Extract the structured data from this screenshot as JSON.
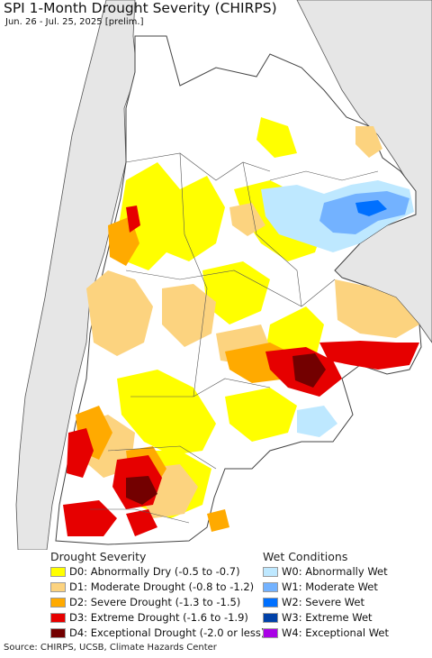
{
  "header": {
    "title": "SPI 1-Month Drought Severity (CHIRPS)",
    "subtitle": "Jun. 26 - Jul. 25, 2025 [prelim.]"
  },
  "legend": {
    "drought_heading": "Drought Severity",
    "wet_heading": "Wet Conditions",
    "drought_items": [
      {
        "label": "D0: Abnormally Dry (-0.5 to -0.7)",
        "color": "#ffff00"
      },
      {
        "label": "D1: Moderate Drought (-0.8 to -1.2)",
        "color": "#fcd37f"
      },
      {
        "label": "D2: Severe Drought (-1.3 to -1.5)",
        "color": "#ffaa00"
      },
      {
        "label": "D3: Extreme Drought (-1.6 to -1.9)",
        "color": "#e60000"
      },
      {
        "label": "D4: Exceptional Drought (-2.0 or less)",
        "color": "#730000"
      }
    ],
    "wet_items": [
      {
        "label": "W0: Abnormally Wet",
        "color": "#bee8ff"
      },
      {
        "label": "W1: Moderate Wet",
        "color": "#73b2ff"
      },
      {
        "label": "W2: Severe Wet",
        "color": "#0070ff"
      },
      {
        "label": "W3: Extreme Wet",
        "color": "#0041a8"
      },
      {
        "label": "W4: Exceptional Wet",
        "color": "#a900e6"
      }
    ]
  },
  "footer": {
    "source": "Source: CHIRPS, UCSB, Climate Hazards Center"
  }
}
